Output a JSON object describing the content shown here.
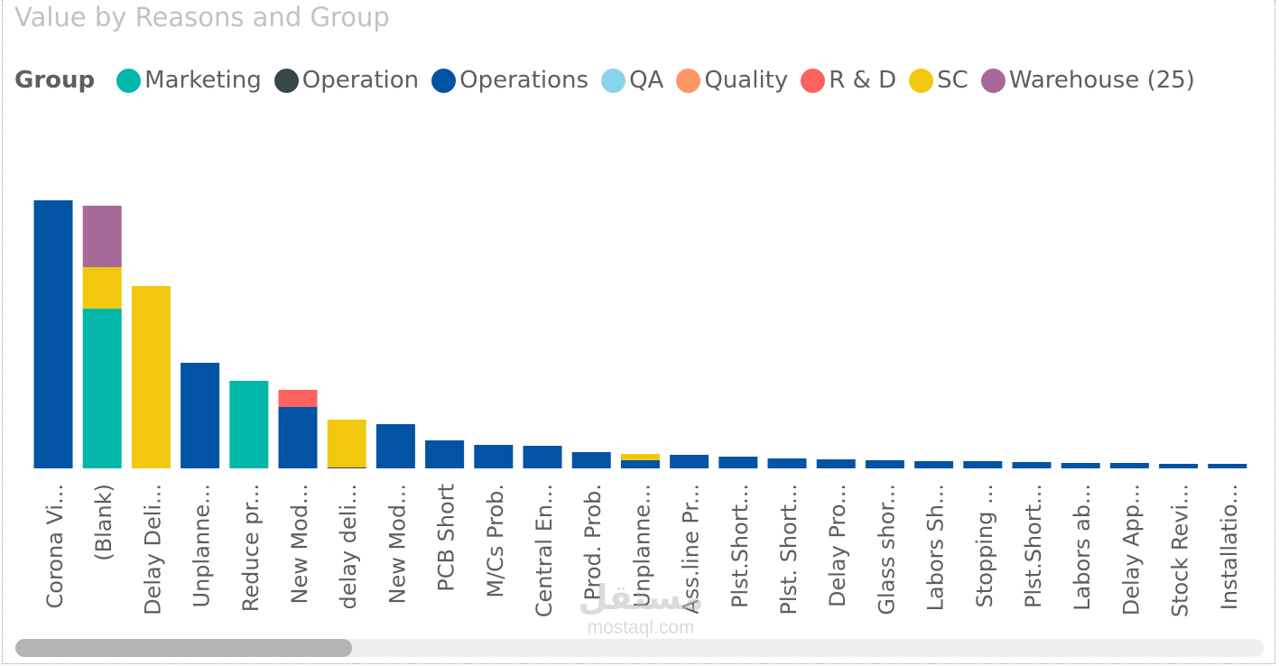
{
  "colors": {
    "Marketing": "#01B8AA",
    "Operation": "#374649",
    "Operations": "#0353A4",
    "QA": "#8AD4EB",
    "Quality": "#FE9666",
    "R & D": "#FD625E",
    "SC": "#F2C80F",
    "Warehouse": "#A66999"
  },
  "legend": {
    "title": "Group",
    "items": [
      {
        "label": "Marketing",
        "key": "Marketing"
      },
      {
        "label": "Operation",
        "key": "Operation"
      },
      {
        "label": "Operations",
        "key": "Operations"
      },
      {
        "label": "QA",
        "key": "QA"
      },
      {
        "label": "Quality",
        "key": "Quality"
      },
      {
        "label": "R & D",
        "key": "R & D"
      },
      {
        "label": "SC",
        "key": "SC"
      },
      {
        "label": "Warehouse (25)",
        "key": "Warehouse"
      }
    ]
  },
  "watermark": {
    "logo": "مستقل",
    "domain": "mostaql.com"
  },
  "chart_data": {
    "type": "bar",
    "stacked": true,
    "title": "Value by Reasons and Group",
    "xlabel": "",
    "ylabel": "",
    "ylim": [
      0,
      300
    ],
    "grid": false,
    "legend_placement": "top-left",
    "categories": [
      "Corona Vi...",
      "(Blank)",
      "Delay Deli...",
      "Unplanne...",
      "Reduce pr...",
      "New Mod...",
      "delay deli...",
      "New Mod...",
      "PCB Short",
      "M/Cs Prob.",
      "Central En...",
      "Prod. Prob.",
      "Unplanne...",
      "Ass.line Pr...",
      "Plst.Short...",
      "Plst. Short...",
      "Delay Pro...",
      "Glass shor...",
      "Labors Sh...",
      "Stopping ...",
      "Plst.Short...",
      "Labors ab...",
      "Delay App...",
      "Stock Revi...",
      "Installatio..."
    ],
    "series": [
      {
        "name": "Marketing",
        "values": [
          0,
          177,
          0,
          0,
          97,
          0,
          0,
          0,
          0,
          0,
          0,
          0,
          0,
          0,
          0,
          0,
          0,
          0,
          0,
          0,
          0,
          0,
          0,
          0,
          0
        ]
      },
      {
        "name": "Operation",
        "values": [
          0,
          0,
          0,
          0,
          0,
          0,
          1,
          0,
          0,
          0,
          0,
          0,
          0,
          0,
          0,
          0,
          0,
          0,
          0,
          0,
          0,
          0,
          0,
          0,
          0
        ]
      },
      {
        "name": "Operations",
        "values": [
          297,
          0,
          0,
          117,
          0,
          68,
          0,
          49,
          31,
          26,
          25,
          18,
          9,
          15,
          13,
          11,
          10,
          9,
          8,
          8,
          7,
          6,
          6,
          5,
          5
        ]
      },
      {
        "name": "QA",
        "values": [
          0,
          0,
          0,
          0,
          0,
          0,
          0,
          0,
          0,
          0,
          0,
          0,
          0,
          0,
          0,
          0,
          0,
          0,
          0,
          0,
          0,
          0,
          0,
          0,
          0
        ]
      },
      {
        "name": "Quality",
        "values": [
          0,
          0,
          0,
          0,
          0,
          0,
          0,
          0,
          0,
          0,
          0,
          0,
          0,
          0,
          0,
          0,
          0,
          0,
          0,
          0,
          0,
          0,
          0,
          0,
          0
        ]
      },
      {
        "name": "R & D",
        "values": [
          0,
          0,
          0,
          0,
          0,
          19,
          0,
          0,
          0,
          0,
          0,
          0,
          0,
          0,
          0,
          0,
          0,
          0,
          0,
          0,
          0,
          0,
          0,
          0,
          0
        ]
      },
      {
        "name": "SC",
        "values": [
          0,
          46,
          202,
          0,
          0,
          0,
          53,
          0,
          0,
          0,
          0,
          0,
          7,
          0,
          0,
          0,
          0,
          0,
          0,
          0,
          0,
          0,
          0,
          0,
          0
        ]
      },
      {
        "name": "Warehouse",
        "values": [
          0,
          68,
          0,
          0,
          0,
          0,
          0,
          0,
          0,
          0,
          0,
          0,
          0,
          0,
          0,
          0,
          0,
          0,
          0,
          0,
          0,
          0,
          0,
          0,
          0
        ]
      }
    ]
  },
  "scrollbar": {
    "thumb_fraction": 0.27
  }
}
